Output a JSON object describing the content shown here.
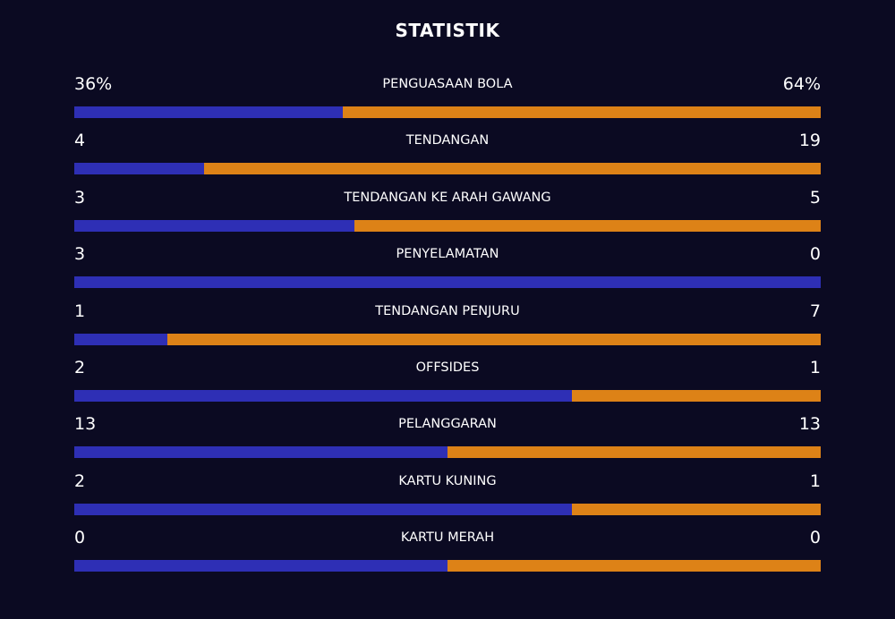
{
  "header": {
    "title": "STATISTIK"
  },
  "colors": {
    "home": "#2e2fb5",
    "away": "#dd8217",
    "background": "#0b0a22"
  },
  "stats": [
    {
      "label": "PENGUASAAN BOLA",
      "home": "36%",
      "away": "64%",
      "home_share": 0.36
    },
    {
      "label": "TENDANGAN",
      "home": "4",
      "away": "19",
      "home_share": 0.174
    },
    {
      "label": "TENDANGAN KE ARAH GAWANG",
      "home": "3",
      "away": "5",
      "home_share": 0.375
    },
    {
      "label": "PENYELAMATAN",
      "home": "3",
      "away": "0",
      "home_share": 1.0
    },
    {
      "label": "TENDANGAN PENJURU",
      "home": "1",
      "away": "7",
      "home_share": 0.125
    },
    {
      "label": "OFFSIDES",
      "home": "2",
      "away": "1",
      "home_share": 0.667
    },
    {
      "label": "PELANGGARAN",
      "home": "13",
      "away": "13",
      "home_share": 0.5
    },
    {
      "label": "KARTU KUNING",
      "home": "2",
      "away": "1",
      "home_share": 0.667
    },
    {
      "label": "KARTU MERAH",
      "home": "0",
      "away": "0",
      "home_share": 0.5
    }
  ]
}
